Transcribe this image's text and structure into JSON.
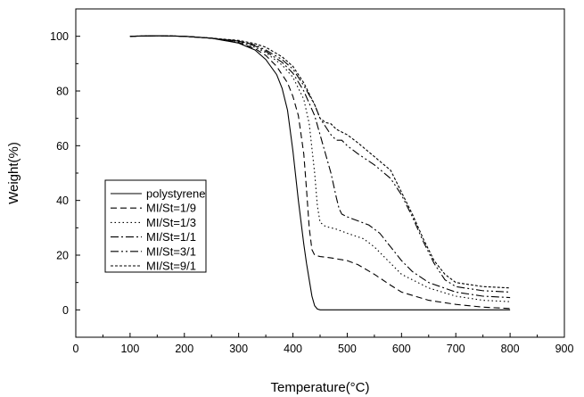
{
  "chart_data": {
    "type": "line",
    "title": "",
    "xlabel": "Temperature(°C)",
    "ylabel": "Weight(%)",
    "xlim": [
      0,
      900
    ],
    "ylim": [
      -10,
      110
    ],
    "xticks": [
      0,
      100,
      200,
      300,
      400,
      500,
      600,
      700,
      800,
      900
    ],
    "yticks": [
      0,
      20,
      40,
      60,
      80,
      100
    ],
    "xtick_labels": [
      "0",
      "100",
      "200",
      "300",
      "400",
      "500",
      "600",
      "700",
      "800",
      "900"
    ],
    "ytick_labels": [
      "0",
      "20",
      "40",
      "60",
      "80",
      "100"
    ],
    "grid": false,
    "legend_position": "lower-left",
    "series": [
      {
        "name": "polystyrene",
        "dash": "solid",
        "x": [
          100,
          150,
          200,
          250,
          300,
          330,
          350,
          370,
          380,
          390,
          400,
          410,
          420,
          425,
          430,
          435,
          440,
          445,
          450,
          500,
          600,
          700,
          800
        ],
        "y": [
          100,
          100.2,
          100,
          99.3,
          97.5,
          95,
          91.5,
          86,
          81,
          73,
          58,
          40,
          24,
          17,
          11,
          5,
          1.5,
          0.3,
          0,
          0,
          0,
          0,
          0
        ]
      },
      {
        "name": "MI/St=1/9",
        "dash": "dashed",
        "x": [
          100,
          150,
          200,
          250,
          300,
          330,
          350,
          370,
          390,
          400,
          410,
          420,
          425,
          430,
          435,
          440,
          450,
          470,
          500,
          520,
          550,
          580,
          600,
          650,
          700,
          750,
          800
        ],
        "y": [
          100,
          100.2,
          100,
          99.3,
          97.7,
          95.5,
          93,
          89,
          83,
          78,
          71,
          57,
          44,
          30,
          22,
          20,
          19.5,
          19,
          18,
          16.5,
          13,
          9,
          6.5,
          3.5,
          2,
          1,
          0.5
        ]
      },
      {
        "name": "MI/St=1/3",
        "dash": "dotted",
        "x": [
          100,
          150,
          200,
          250,
          300,
          330,
          350,
          380,
          400,
          420,
          430,
          440,
          445,
          450,
          460,
          480,
          500,
          530,
          550,
          580,
          600,
          650,
          700,
          750,
          800
        ],
        "y": [
          100,
          100.2,
          100,
          99.3,
          98,
          96,
          94,
          89.5,
          85,
          77,
          68,
          50,
          38,
          32,
          30.5,
          29.5,
          28,
          26,
          23,
          17,
          13,
          8,
          5,
          3.5,
          3
        ]
      },
      {
        "name": "MI/St=1/1",
        "dash": "dashdot",
        "x": [
          100,
          150,
          200,
          250,
          300,
          330,
          350,
          380,
          400,
          420,
          440,
          450,
          460,
          470,
          480,
          485,
          490,
          500,
          520,
          540,
          560,
          580,
          600,
          620,
          650,
          700,
          750,
          800
        ],
        "y": [
          100,
          100.2,
          100,
          99.3,
          98.2,
          96.5,
          94.5,
          90.5,
          86.5,
          80,
          71,
          64,
          57,
          50,
          41,
          37,
          35,
          34,
          32.5,
          31,
          28,
          23,
          18,
          14,
          10,
          6.5,
          5,
          4.5
        ]
      },
      {
        "name": "MI/St=3/1",
        "dash": "dashdotdot",
        "x": [
          100,
          150,
          200,
          250,
          300,
          330,
          350,
          380,
          400,
          420,
          440,
          450,
          460,
          470,
          480,
          490,
          500,
          520,
          550,
          580,
          600,
          620,
          640,
          660,
          680,
          700,
          750,
          800
        ],
        "y": [
          100,
          100.2,
          100,
          99.3,
          98.3,
          96.8,
          95,
          91.5,
          88,
          82,
          75,
          70,
          67,
          64,
          62,
          62,
          60,
          57,
          53,
          48,
          42,
          34,
          25,
          17,
          11,
          8.5,
          7,
          6.5
        ]
      },
      {
        "name": "MI/St=9/1",
        "dash": "shortdash",
        "x": [
          100,
          150,
          200,
          250,
          300,
          330,
          350,
          380,
          400,
          420,
          440,
          450,
          460,
          470,
          480,
          500,
          520,
          550,
          580,
          600,
          620,
          640,
          660,
          680,
          700,
          750,
          800
        ],
        "y": [
          100,
          100.2,
          100,
          99.3,
          98.5,
          97.3,
          96,
          92.5,
          89,
          83,
          75,
          70,
          68.5,
          68,
          66,
          64,
          61,
          56,
          51,
          43,
          35,
          26,
          18,
          13,
          10,
          8.5,
          8
        ]
      }
    ]
  }
}
